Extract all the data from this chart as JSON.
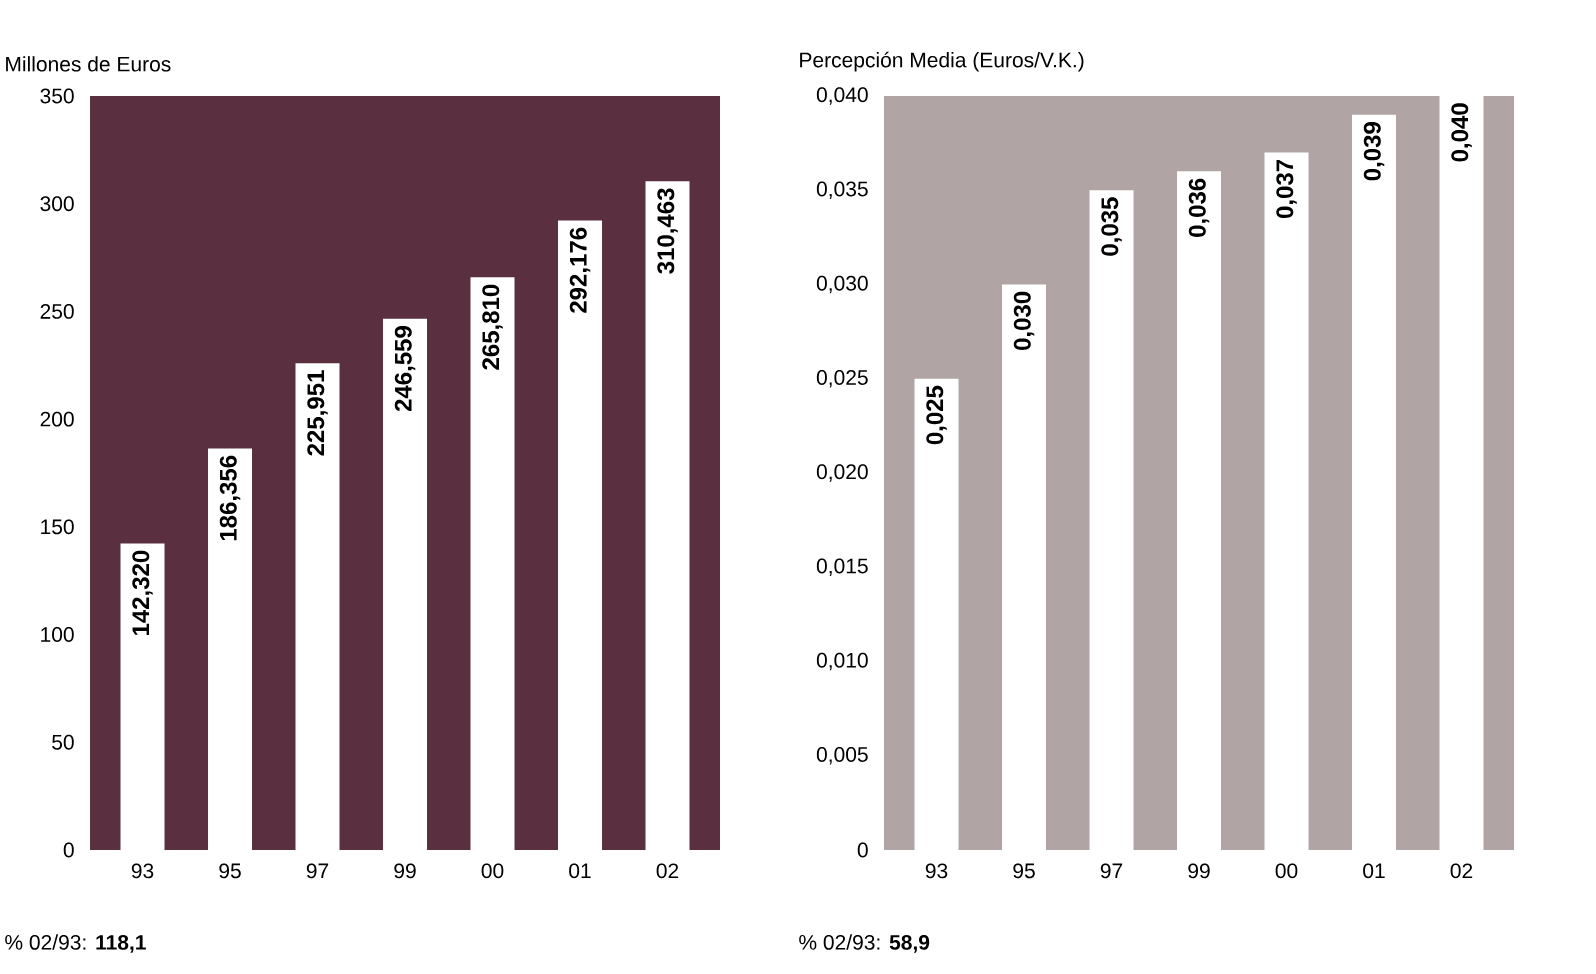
{
  "chart_data": [
    {
      "type": "bar",
      "ylabel": "Millones de Euros",
      "categories": [
        "93",
        "95",
        "97",
        "99",
        "00",
        "01",
        "02"
      ],
      "values": [
        142.32,
        186.356,
        225.951,
        246.559,
        265.81,
        292.176,
        310.463
      ],
      "value_labels": [
        "142,320",
        "186,356",
        "225,951",
        "246,559",
        "265,810",
        "292,176",
        "310,463"
      ],
      "color": "#ffffff",
      "ylim": [
        0,
        350
      ],
      "yticks": [
        0,
        50,
        100,
        150,
        200,
        250,
        300,
        350
      ],
      "grid": false,
      "annotations": [
        "% 02/93: **118,1**"
      ]
    },
    {
      "type": "bar",
      "ylabel": "Percepción Media (Euros/V.K.)",
      "categories": [
        "93",
        "95",
        "97",
        "99",
        "00",
        "01",
        "02"
      ],
      "values": [
        0.025,
        0.03,
        0.035,
        0.036,
        0.037,
        0.039,
        0.04
      ],
      "value_labels": [
        "0,025",
        "0,030",
        "0,035",
        "0,036",
        "0,037",
        "0,039",
        "0,040"
      ],
      "color": "#ffffff",
      "ylim": [
        0,
        0.04
      ],
      "yticks": [
        0,
        {
          "value": 0.005,
          "label": "0,005"
        },
        {
          "value": 0.01,
          "label": "0,010"
        },
        {
          "value": 0.015,
          "label": "0,015"
        },
        {
          "value": 0.02,
          "label": "0,020"
        },
        {
          "value": 0.025,
          "label": "0,025"
        },
        {
          "value": 0.03,
          "label": "0,030"
        },
        {
          "value": 0.035,
          "label": "0,035"
        },
        {
          "value": 0.04,
          "label": "0,040"
        }
      ],
      "grid": false,
      "annotations": [
        "% 02/93: **58,9**"
      ]
    }
  ]
}
